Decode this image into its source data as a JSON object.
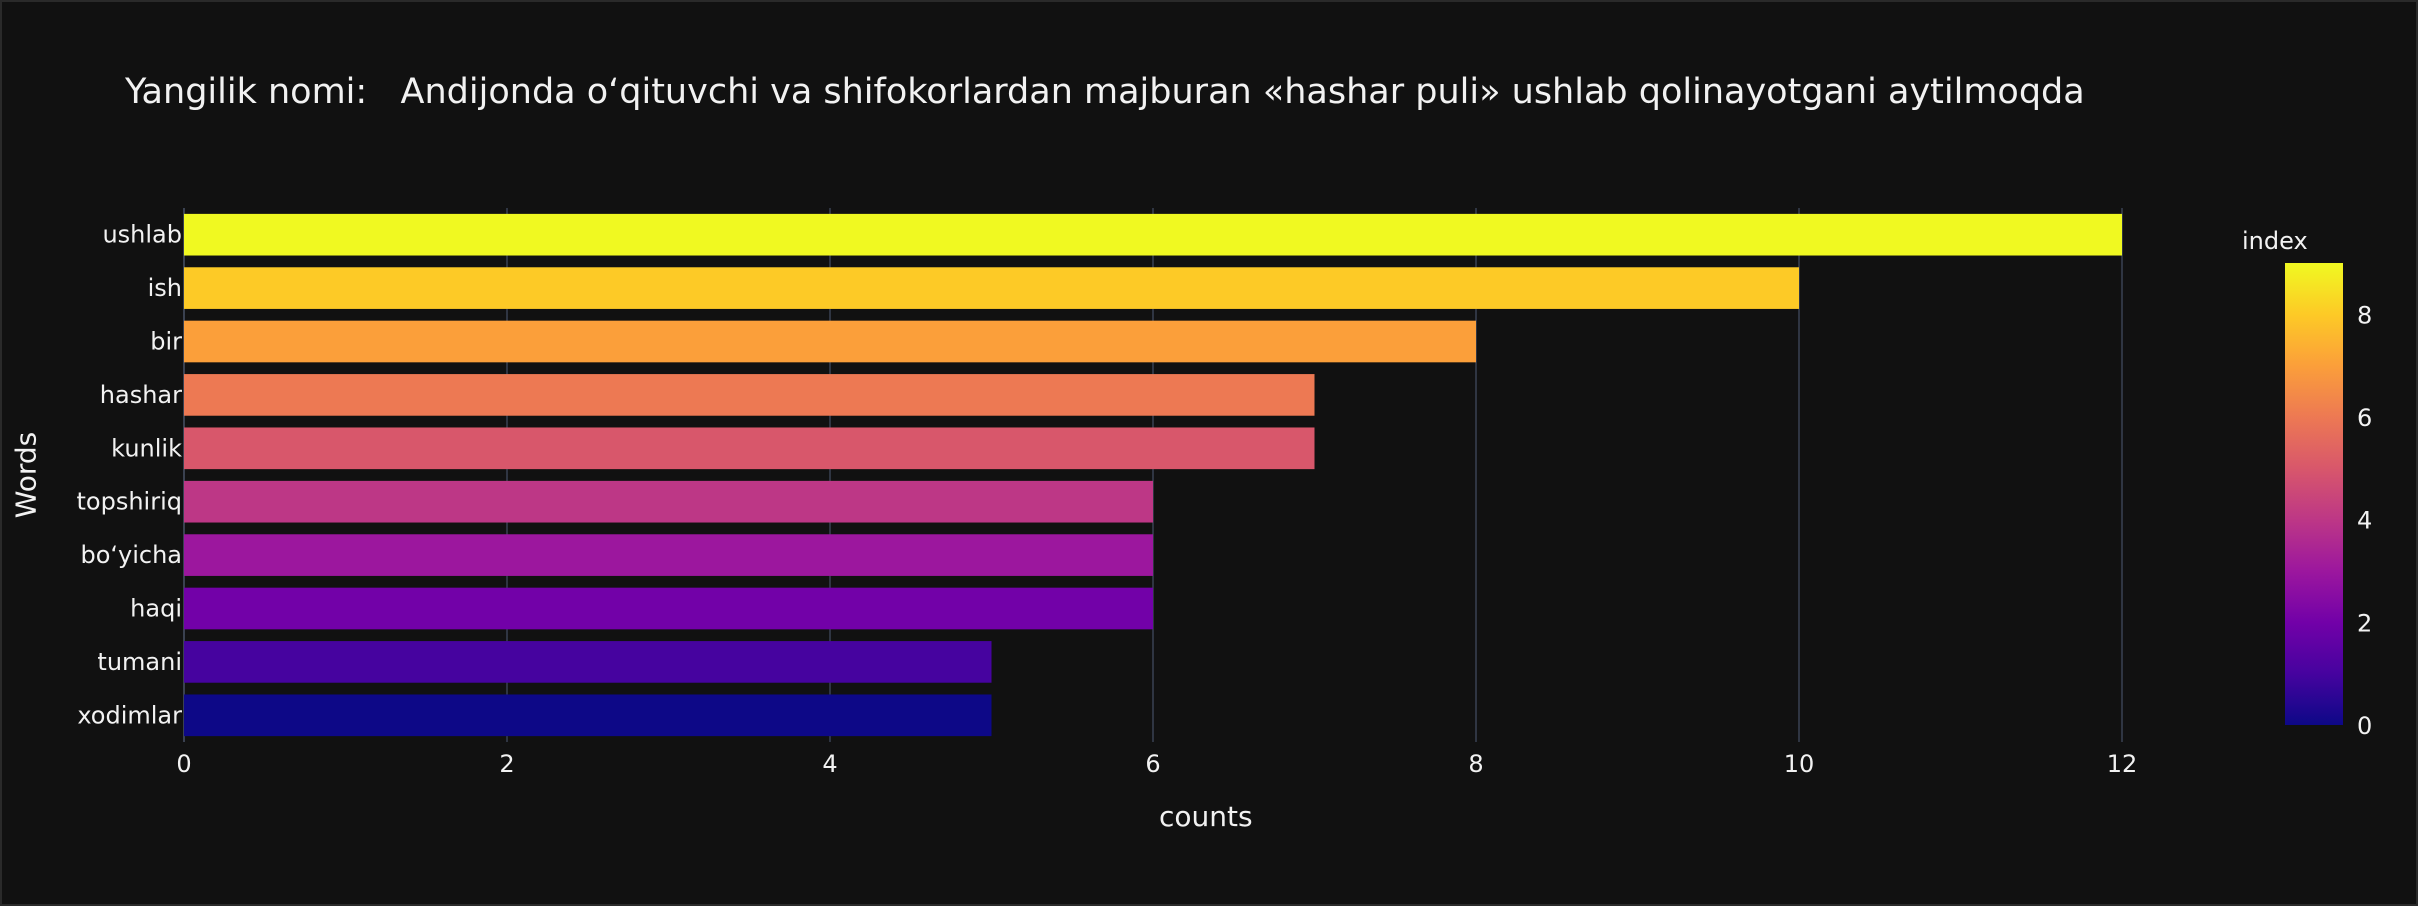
{
  "chart_data": {
    "type": "bar",
    "orientation": "horizontal",
    "title": "Yangilik nomi:   Andijonda o‘qituvchi va shifokorlardan majburan «hashar puli» ushlab qolinayotgani aytilmoqda",
    "xlabel": "counts",
    "ylabel": "Words",
    "xlim": [
      0,
      13
    ],
    "xticks": [
      0,
      2,
      4,
      6,
      8,
      10,
      12
    ],
    "grid": true,
    "categories": [
      "ushlab",
      "ish",
      "bir",
      "hashar",
      "kunlik",
      "topshiriq",
      "bo‘yicha",
      "haqi",
      "tumani",
      "xodimlar"
    ],
    "values": [
      12,
      10,
      8,
      7,
      7,
      6,
      6,
      6,
      5,
      5
    ],
    "color_index": [
      9,
      8,
      7,
      6,
      5,
      4,
      3,
      2,
      1,
      0
    ],
    "colorbar": {
      "title": "index",
      "range": [
        0,
        9
      ],
      "ticks": [
        0,
        2,
        4,
        6,
        8
      ],
      "colorscale": [
        "#0d0887",
        "#46039f",
        "#7201a8",
        "#9c179e",
        "#bd3786",
        "#d8576b",
        "#ed7953",
        "#fb9f3a",
        "#fdca26",
        "#f0f921"
      ]
    }
  }
}
